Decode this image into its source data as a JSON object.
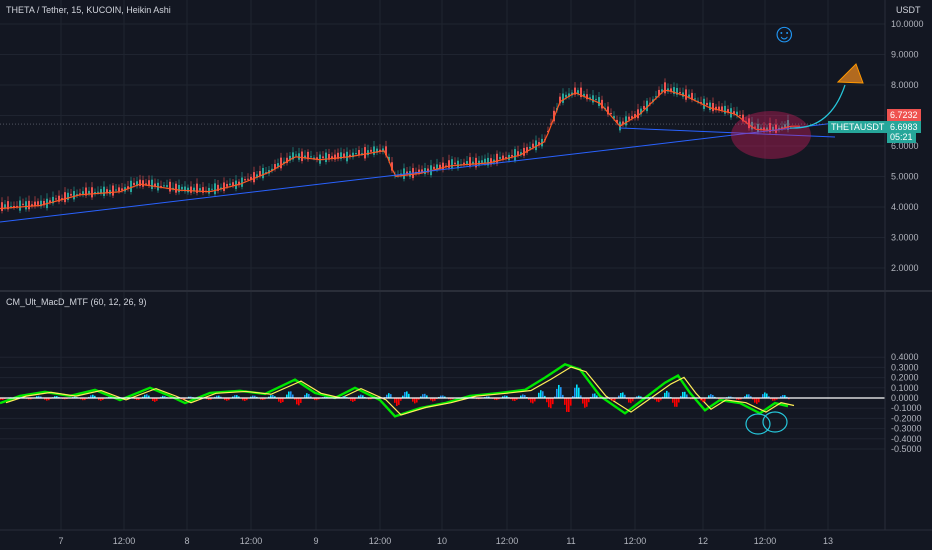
{
  "header": {
    "symbol_title": "THETA / Tether, 15, KUCOIN, Heikin Ashi",
    "currency": "USDT"
  },
  "indicator": {
    "name": "CM_Ult_MacD_MTF (60, 12, 26, 9)"
  },
  "price_axis": {
    "labels": [
      "10.0000",
      "9.0000",
      "8.0000",
      "7.0000",
      "6.0000",
      "5.0000",
      "4.0000",
      "3.0000",
      "2.0000"
    ]
  },
  "price_tags": {
    "red_value": "6.7232",
    "symbol": "THETAUSDT",
    "green_value": "6.6983",
    "countdown": "05:21"
  },
  "macd_axis": {
    "labels": [
      "0.4000",
      "0.3000",
      "0.2000",
      "0.1000",
      "0.0000",
      "-0.1000",
      "-0.2000",
      "-0.3000",
      "-0.4000",
      "-0.5000"
    ]
  },
  "time_axis": {
    "labels": [
      "7",
      "12:00",
      "8",
      "12:00",
      "9",
      "12:00",
      "10",
      "12:00",
      "11",
      "12:00",
      "12",
      "12:00",
      "13"
    ]
  },
  "colors": {
    "background": "#131722",
    "candle_up": "#26a69a",
    "candle_down": "#ef5350",
    "ma_line": "#ff5722",
    "trendline": "#2962ff",
    "macd_green": "#00e600",
    "signal_yellow": "#ffee58",
    "hist_red": "#ff0000",
    "hist_blue": "#2196f3",
    "hist_aqua": "#00e5ff"
  },
  "annotations": {
    "smiley": "☺"
  }
}
